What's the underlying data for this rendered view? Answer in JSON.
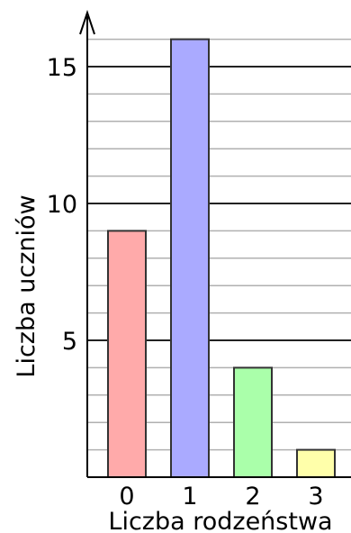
{
  "chart_data": {
    "type": "bar",
    "title": "",
    "xlabel": "Liczba rodzeństwa",
    "ylabel": "Liczba uczniów",
    "categories": [
      "0",
      "1",
      "2",
      "3"
    ],
    "values": [
      9,
      16,
      4,
      1
    ],
    "bar_colors": [
      "#ffaaaa",
      "#aaaaff",
      "#aaffaa",
      "#ffffaa"
    ],
    "ylim": [
      0,
      16.5
    ],
    "yticks": [
      5,
      10,
      15
    ],
    "major_grid_every": 5,
    "minor_grid_every": 1,
    "grid": true,
    "legend": "none"
  }
}
